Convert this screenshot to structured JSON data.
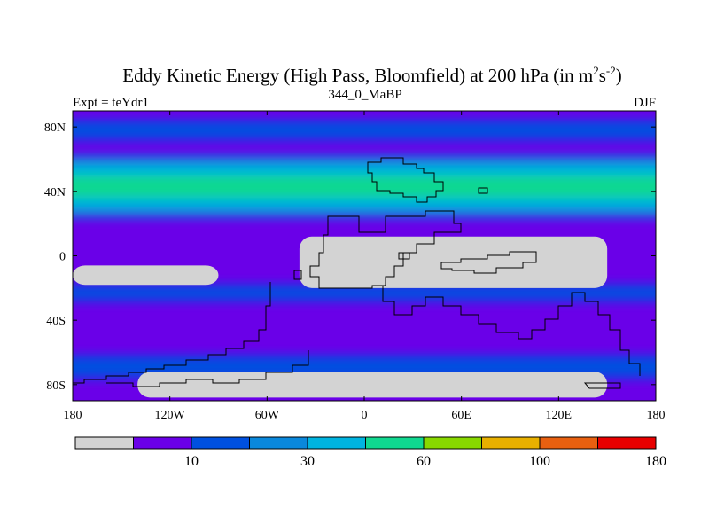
{
  "chart_data": {
    "type": "heatmap",
    "title": "Eddy Kinetic Energy (High Pass, Bloomfield) at 200 hPa (in m",
    "title_unit_sup1": "2",
    "title_unit_s": "s",
    "title_unit_sup2": "-2",
    "title_close": ")",
    "subtitle_center": "344_0_MaBP",
    "subtitle_left": "Expt = teYdr1",
    "subtitle_right": "DJF",
    "xlim": [
      -180,
      180
    ],
    "ylim": [
      -90,
      90
    ],
    "x_ticks": [
      {
        "value": -180,
        "label": "180"
      },
      {
        "value": -120,
        "label": "120W"
      },
      {
        "value": -60,
        "label": "60W"
      },
      {
        "value": 0,
        "label": "0"
      },
      {
        "value": 60,
        "label": "60E"
      },
      {
        "value": 120,
        "label": "120E"
      },
      {
        "value": 180,
        "label": "180"
      }
    ],
    "y_ticks": [
      {
        "value": 80,
        "label": "80N"
      },
      {
        "value": 40,
        "label": "40N"
      },
      {
        "value": 0,
        "label": "0"
      },
      {
        "value": -40,
        "label": "40S"
      },
      {
        "value": -80,
        "label": "80S"
      }
    ],
    "colorbar": {
      "colors": [
        "#d3d3d3",
        "#6a00e8",
        "#0050e0",
        "#0a88dc",
        "#00b4e0",
        "#10d890",
        "#88d800",
        "#e8b000",
        "#e86010",
        "#e80000"
      ],
      "labels": [
        {
          "boundary": 1,
          "label": "10"
        },
        {
          "boundary": 3,
          "label": "30"
        },
        {
          "boundary": 5,
          "label": "60"
        },
        {
          "boundary": 7,
          "label": "100"
        },
        {
          "boundary": 9,
          "label": "180"
        }
      ]
    },
    "fields": {
      "background_level": 1,
      "bands": [
        {
          "level": 2,
          "lat_top": 84,
          "lat_bottom": 72
        },
        {
          "level": 3,
          "lat_top": 62,
          "lat_bottom": 24
        },
        {
          "level": 4,
          "lat_top": 56,
          "lat_bottom": 30
        },
        {
          "level": 5,
          "lat_top": 50,
          "lat_bottom": 36
        },
        {
          "level": 2,
          "lat_top": -18,
          "lat_bottom": -28
        },
        {
          "level": 2,
          "lat_top": -62,
          "lat_bottom": -76
        }
      ],
      "low_regions": [
        {
          "level": 0,
          "lon_min": -40,
          "lon_max": 150,
          "lat_min": -20,
          "lat_max": 12
        },
        {
          "level": 0,
          "lon_min": -180,
          "lon_max": -90,
          "lat_min": -18,
          "lat_max": -6
        },
        {
          "level": 0,
          "lon_min": -140,
          "lon_max": 150,
          "lat_min": -88,
          "lat_max": -72
        }
      ]
    }
  }
}
